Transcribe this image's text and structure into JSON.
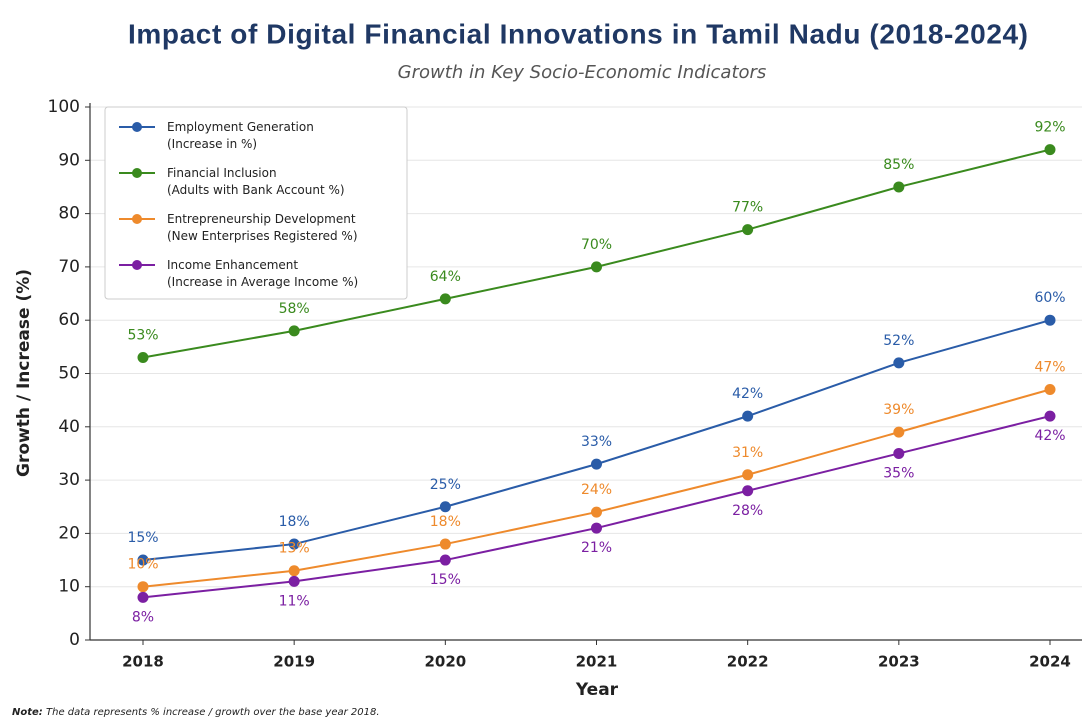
{
  "chart_data": {
    "type": "line",
    "title": "Impact of Digital Financial Innovations in Tamil Nadu (2018-2024)",
    "subtitle": "Growth in Key Socio-Economic Indicators",
    "xlabel": "Year",
    "ylabel": "Growth / Increase (%)",
    "note_label": "Note:",
    "note": "The data represents % increase / growth over the base year 2018.",
    "categories": [
      "2018",
      "2019",
      "2020",
      "2021",
      "2022",
      "2023",
      "2024"
    ],
    "ylim": [
      0,
      100
    ],
    "yticks": [
      0,
      10,
      20,
      30,
      40,
      50,
      60,
      70,
      80,
      90,
      100
    ],
    "grid": true,
    "legend": "upper left",
    "series": [
      {
        "name": "Employment Generation (Increase in %)",
        "color": "#2a5ca8",
        "label_position": "above",
        "values": [
          15,
          18,
          25,
          33,
          42,
          52,
          60
        ],
        "value_labels": [
          "15%",
          "18%",
          "25%",
          "33%",
          "42%",
          "52%",
          "60%"
        ]
      },
      {
        "name": "Financial Inclusion (Adults with Bank Account %)",
        "color": "#3a8a1e",
        "label_position": "above",
        "values": [
          53,
          58,
          64,
          70,
          77,
          85,
          92
        ],
        "value_labels": [
          "53%",
          "58%",
          "64%",
          "70%",
          "77%",
          "85%",
          "92%"
        ]
      },
      {
        "name": "Entrepreneurship Development (New Enterprises Registered %)",
        "color": "#ee8a2c",
        "label_position": "above",
        "values": [
          10,
          13,
          18,
          24,
          31,
          39,
          47
        ],
        "value_labels": [
          "10%",
          "13%",
          "18%",
          "24%",
          "31%",
          "39%",
          "47%"
        ]
      },
      {
        "name": "Income Enhancement (Increase in Average Income %)",
        "color": "#7b1fa2",
        "label_position": "below",
        "values": [
          8,
          11,
          15,
          21,
          28,
          35,
          42
        ],
        "value_labels": [
          "8%",
          "11%",
          "15%",
          "21%",
          "28%",
          "35%",
          "42%"
        ]
      }
    ]
  }
}
